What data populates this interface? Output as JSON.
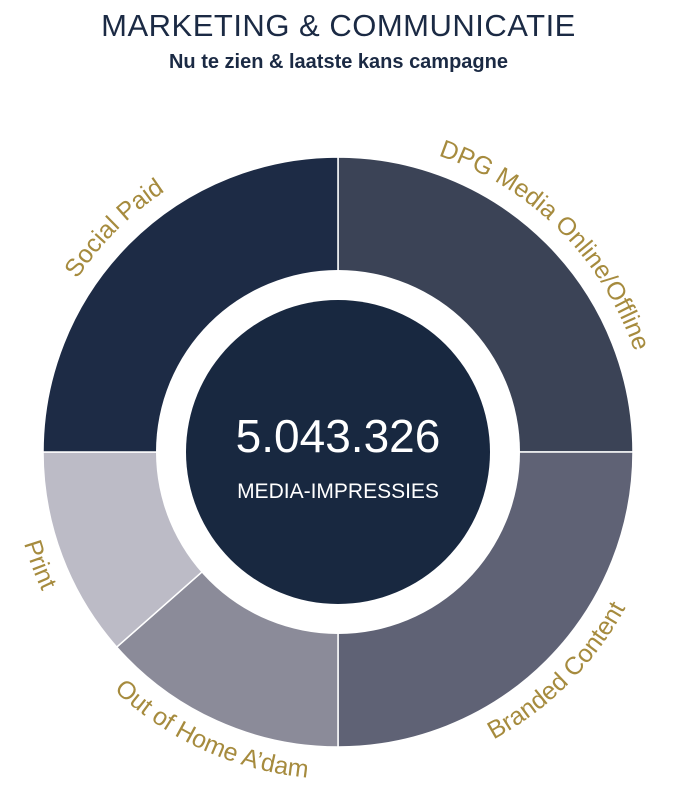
{
  "header": {
    "title": "MARKETING & COMMUNICATIE",
    "subtitle": "Nu te zien & laatste kans campagne"
  },
  "center": {
    "value": "5.043.326",
    "label": "MEDIA-IMPRESSIES"
  },
  "colors": {
    "label_gold": "#a68b3e",
    "center_fill": "#182840",
    "title": "#1b2a44"
  },
  "chart_data": {
    "type": "pie",
    "style": "donut",
    "slices": [
      {
        "label": "DPG Media Online/Offline",
        "share": 0.25,
        "color": "#3b4356"
      },
      {
        "label": "Branded Content",
        "share": 0.25,
        "color": "#5f6275"
      },
      {
        "label": "Out of Home A’dam",
        "share": 0.135,
        "color": "#8b8b99"
      },
      {
        "label": "Print",
        "share": 0.115,
        "color": "#bcbbc6"
      },
      {
        "label": "Social Paid",
        "share": 0.25,
        "color": "#1d2b45"
      }
    ]
  }
}
